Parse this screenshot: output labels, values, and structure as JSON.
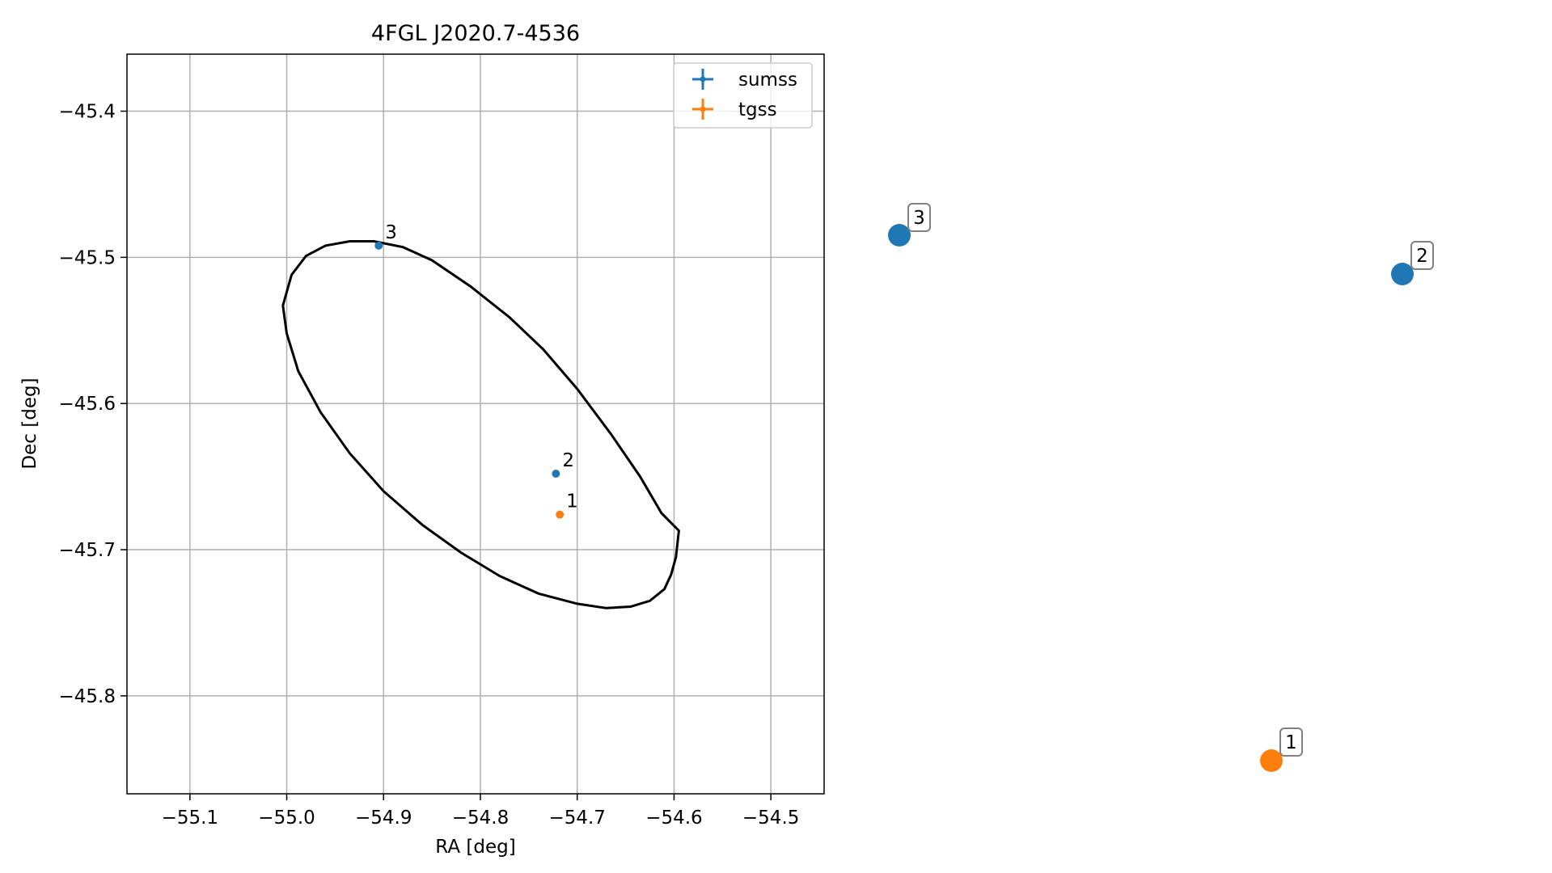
{
  "chart_data": {
    "type": "scatter",
    "title": "4FGL J2020.7-4536",
    "xlabel": "RA [deg]",
    "ylabel": "Dec [deg]",
    "xlim": [
      -55.165,
      -54.445
    ],
    "ylim": [
      -45.867,
      -45.361
    ],
    "grid": true,
    "legend_position": "top-right",
    "x_ticks": [
      -55.1,
      -55.0,
      -54.9,
      -54.8,
      -54.7,
      -54.6,
      -54.5
    ],
    "x_tick_labels": [
      "−55.1",
      "−55.0",
      "−54.9",
      "−54.8",
      "−54.7",
      "−54.6",
      "−54.5"
    ],
    "y_ticks": [
      -45.4,
      -45.5,
      -45.6,
      -45.7,
      -45.8
    ],
    "y_tick_labels": [
      "−45.4",
      "−45.5",
      "−45.6",
      "−45.7",
      "−45.8"
    ],
    "series": [
      {
        "name": "sumss",
        "color": "#1f77b4",
        "points": [
          {
            "label": "2",
            "x": -54.722,
            "y": -45.648
          },
          {
            "label": "3",
            "x": -54.905,
            "y": -45.492
          }
        ]
      },
      {
        "name": "tgss",
        "color": "#ff7f0e",
        "points": [
          {
            "label": "1",
            "x": -54.718,
            "y": -45.676
          }
        ]
      }
    ],
    "ellipse": {
      "color": "#000000",
      "points": [
        [
          -54.595,
          -45.687
        ],
        [
          -54.598,
          -45.705
        ],
        [
          -54.603,
          -45.717
        ],
        [
          -54.61,
          -45.727
        ],
        [
          -54.625,
          -45.735
        ],
        [
          -54.645,
          -45.739
        ],
        [
          -54.67,
          -45.74
        ],
        [
          -54.7,
          -45.737
        ],
        [
          -54.74,
          -45.73
        ],
        [
          -54.78,
          -45.718
        ],
        [
          -54.82,
          -45.702
        ],
        [
          -54.86,
          -45.683
        ],
        [
          -54.9,
          -45.66
        ],
        [
          -54.935,
          -45.634
        ],
        [
          -54.965,
          -45.606
        ],
        [
          -54.988,
          -45.578
        ],
        [
          -55.0,
          -45.552
        ],
        [
          -55.004,
          -45.533
        ],
        [
          -54.995,
          -45.512
        ],
        [
          -54.98,
          -45.499
        ],
        [
          -54.96,
          -45.492
        ],
        [
          -54.935,
          -45.489
        ],
        [
          -54.91,
          -45.489
        ],
        [
          -54.88,
          -45.493
        ],
        [
          -54.85,
          -45.502
        ],
        [
          -54.81,
          -45.52
        ],
        [
          -54.77,
          -45.541
        ],
        [
          -54.735,
          -45.563
        ],
        [
          -54.7,
          -45.59
        ],
        [
          -54.665,
          -45.621
        ],
        [
          -54.635,
          -45.65
        ],
        [
          -54.613,
          -45.675
        ]
      ]
    }
  },
  "side_panel": {
    "markers": [
      {
        "label": "3",
        "color": "#1f77b4"
      },
      {
        "label": "2",
        "color": "#1f77b4"
      },
      {
        "label": "1",
        "color": "#ff7f0e"
      }
    ]
  }
}
